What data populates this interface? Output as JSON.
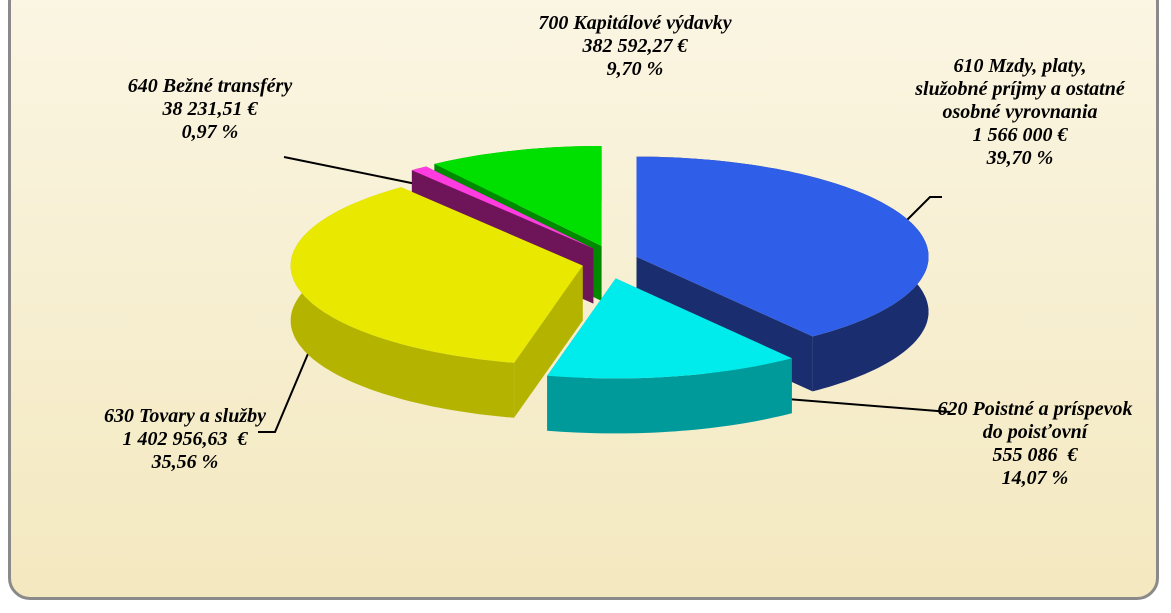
{
  "chart_data": {
    "type": "pie",
    "categories": [
      "610 Mzdy, platy, služobné príjmy a ostatné osobné vyrovnania",
      "620 Poistné a príspevok do poisťovní",
      "630 Tovary a služby",
      "640 Bežné transféry",
      "700 Kapitálové výdavky"
    ],
    "values": [
      39.7,
      14.07,
      35.56,
      0.97,
      9.7
    ],
    "value_labels": [
      "39,70 %",
      "14,07 %",
      "35,56 %",
      "0,97 %",
      "9,70 %"
    ],
    "amounts": [
      1566000,
      555086,
      1402956.63,
      38231.51,
      382592.27
    ],
    "amount_labels": [
      "1 566 000 €",
      "555 086  €",
      "1 402 956,63  €",
      "38 231,51 €",
      "382 592,27 €"
    ],
    "colors": [
      "#2f5ee8",
      "#00ecec",
      "#e8e800",
      "#ff3ce0",
      "#00e000"
    ],
    "side_colors": [
      "#1a2d6e",
      "#009a9a",
      "#b4b400",
      "#6e1458",
      "#008a00"
    ],
    "start_angle": 0,
    "direction": "clockwise",
    "exploded": true
  }
}
